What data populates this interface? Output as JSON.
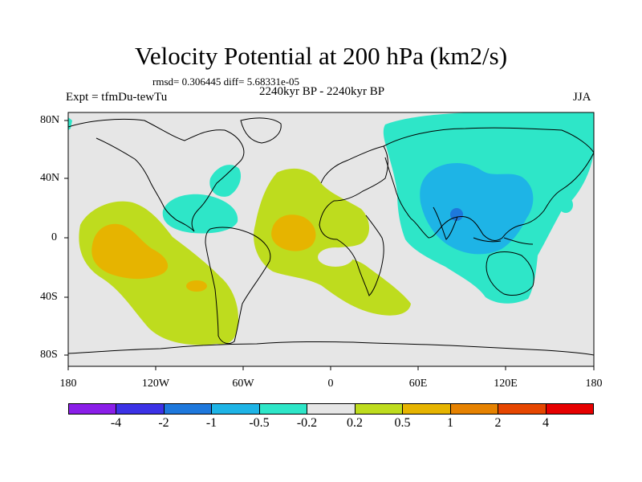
{
  "figure": {
    "title": "Velocity Potential at 200 hPa (km2/s)",
    "stats": "rmsd= 0.306445 diff= 5.68331e-05",
    "experiment": "Expt = tfmDu-tewTu",
    "period": "2240kyr BP - 2240kyr BP",
    "season": "JJA"
  },
  "axes": {
    "lat_labels": [
      "80N",
      "40N",
      "0",
      "40S",
      "80S"
    ],
    "lon_labels": [
      "180",
      "120W",
      "60W",
      "0",
      "60E",
      "120E",
      "180"
    ]
  },
  "colorbar": {
    "colors": [
      "#8a1ee8",
      "#3c32e6",
      "#1e78dc",
      "#1eb4e6",
      "#2ee6c8",
      "#e6e6e6",
      "#bedc1e",
      "#e6b400",
      "#e68200",
      "#e64600",
      "#e60000"
    ],
    "labels": [
      "-4",
      "-2",
      "-1",
      "-0.5",
      "-0.2",
      "0.2",
      "0.5",
      "1",
      "2",
      "4"
    ]
  },
  "colors": {
    "background": "#e6e6e6",
    "teal": "#2ee6c8",
    "blue": "#1eb4e6",
    "blue_dark": "#1e78dc",
    "lime": "#bedc1e",
    "orange": "#e6b400"
  }
}
